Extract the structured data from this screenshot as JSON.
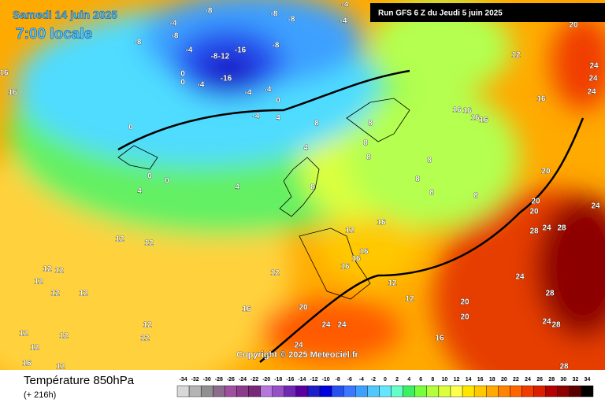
{
  "header": {
    "date": "Samedi 14 juin 2025",
    "time": "7:00 locale",
    "run": "Run GFS 6 Z du Jeudi 5 juin 2025"
  },
  "copyright": "Copyright © 2025 Meteociel.fr",
  "footer": {
    "title": "Température 850hPa",
    "subtitle": "(+ 216h)"
  },
  "legend": {
    "values": [
      -34,
      -32,
      -30,
      -28,
      -26,
      -24,
      -22,
      -20,
      -18,
      -16,
      -14,
      -12,
      -10,
      -8,
      -6,
      -4,
      -2,
      0,
      2,
      4,
      6,
      8,
      10,
      12,
      14,
      16,
      18,
      20,
      22,
      24,
      26,
      28,
      30,
      32,
      34
    ],
    "colors": [
      "#d8d8d8",
      "#b4b4b4",
      "#909090",
      "#8c6c8c",
      "#a050a0",
      "#8c3c8c",
      "#782878",
      "#b478dc",
      "#9650c8",
      "#6e28b4",
      "#5a00a0",
      "#1e1ec8",
      "#0000dc",
      "#2850f0",
      "#3c78ff",
      "#3ca0ff",
      "#50c8ff",
      "#64e6ff",
      "#64ffc8",
      "#3cf064",
      "#78ff3c",
      "#b4ff3c",
      "#dcff3c",
      "#ffff50",
      "#ffe600",
      "#ffc800",
      "#ffaa00",
      "#ff8200",
      "#ff6400",
      "#f03c00",
      "#dc1e00",
      "#b40000",
      "#8c0000",
      "#5a0000",
      "#000000"
    ]
  },
  "map_labels": [
    -8,
    -8,
    -8,
    -4,
    -8,
    -8,
    -4,
    -8,
    -12,
    -16,
    -8,
    -16,
    0,
    0,
    -4,
    -4,
    -4,
    0,
    -4,
    4,
    8,
    4,
    0,
    0,
    0,
    4,
    4,
    8,
    16,
    16,
    12,
    12,
    12,
    12,
    12,
    12,
    12,
    12,
    12,
    12,
    12,
    12,
    16,
    12,
    12,
    16,
    20,
    24,
    24,
    24,
    12,
    16,
    16,
    16,
    16,
    12,
    12,
    20,
    20,
    16,
    16,
    16,
    16,
    16,
    16,
    12,
    20,
    20,
    20,
    24,
    28,
    28,
    24,
    28,
    24,
    28,
    28,
    24,
    24,
    24,
    24,
    20,
    8,
    8,
    8,
    8,
    8,
    8,
    8,
    -4,
    -4
  ]
}
